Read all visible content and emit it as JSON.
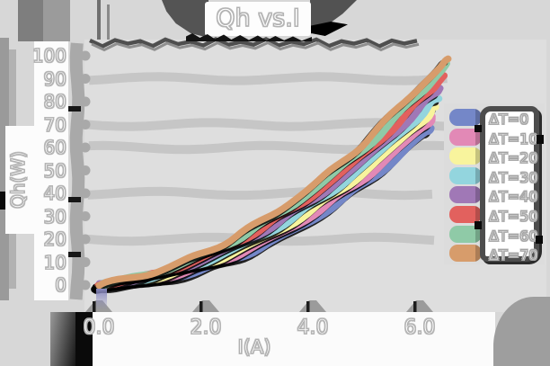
{
  "figure": {
    "title": "Qh vs.I",
    "background_color": "#d7d7d7",
    "plot_background_color": "#dedede",
    "text_color": "#ffffff",
    "shadow_color": "#4f4f4f"
  },
  "chart_data": {
    "type": "line",
    "style": "xkcd-sketch with drop shadows",
    "title": "Qh vs.I",
    "xlabel": "I(A)",
    "ylabel": "Qh(W)",
    "xlim": [
      0,
      6.7
    ],
    "ylim": [
      0,
      105
    ],
    "x_tick_values": [
      0,
      2,
      4,
      6
    ],
    "x_tick_labels": [
      "0.0",
      "2.0",
      "4.0",
      "6.0"
    ],
    "y_tick_values": [
      0,
      10,
      20,
      30,
      40,
      50,
      60,
      70,
      80,
      90,
      100
    ],
    "y_tick_labels": [
      "0",
      "10",
      "20",
      "30",
      "40",
      "50",
      "60",
      "70",
      "80",
      "90",
      "100"
    ],
    "grid": "on",
    "gridline_values": [
      20,
      40,
      60,
      70,
      90
    ],
    "legend_position": "right",
    "series": [
      {
        "name": "ΔT=0",
        "color": "#7487c8",
        "x": [
          0,
          1,
          2,
          3,
          4,
          5,
          6,
          6.2
        ],
        "y": [
          0,
          1.8,
          7.1,
          16.0,
          28.5,
          44.5,
          64.1,
          68.4
        ]
      },
      {
        "name": "ΔT=10",
        "color": "#e289b6",
        "x": [
          0,
          1,
          2,
          3,
          4,
          5,
          6,
          6.25
        ],
        "y": [
          0,
          2.3,
          8.2,
          17.6,
          30.6,
          47.2,
          67.3,
          72.8
        ]
      },
      {
        "name": "ΔT=20",
        "color": "#f8f49d",
        "x": [
          0,
          1,
          2,
          3,
          4,
          5,
          6,
          6.3
        ],
        "y": [
          0,
          2.8,
          9.2,
          19.2,
          32.7,
          49.9,
          70.4,
          77.3
        ]
      },
      {
        "name": "ΔT=30",
        "color": "#93d5de",
        "x": [
          0,
          1,
          2,
          3,
          4,
          5,
          6,
          6.35
        ],
        "y": [
          0,
          3.4,
          10.3,
          20.8,
          34.8,
          52.5,
          73.6,
          81.9
        ]
      },
      {
        "name": "ΔT=40",
        "color": "#a078b6",
        "x": [
          0,
          1,
          2,
          3,
          4,
          5,
          6,
          6.4
        ],
        "y": [
          0,
          3.9,
          11.4,
          22.5,
          37.0,
          55.1,
          76.8,
          86.5
        ]
      },
      {
        "name": "ΔT=50",
        "color": "#e2615e",
        "x": [
          0,
          1,
          2,
          3,
          4,
          5,
          6,
          6.45
        ],
        "y": [
          0,
          4.4,
          12.4,
          24.1,
          39.1,
          57.8,
          80.0,
          91.1
        ]
      },
      {
        "name": "ΔT=60",
        "color": "#8fcaa7",
        "x": [
          0,
          1,
          2,
          3,
          4,
          5,
          6,
          6.5
        ],
        "y": [
          0,
          5.0,
          13.5,
          25.6,
          41.2,
          60.4,
          83.2,
          95.9
        ]
      },
      {
        "name": "ΔT=70",
        "color": "#d79c6b",
        "x": [
          0,
          1,
          2,
          3,
          4,
          5,
          6,
          6.55
        ],
        "y": [
          0,
          5.5,
          14.5,
          27.2,
          43.3,
          63.1,
          86.4,
          98.5
        ]
      }
    ]
  }
}
